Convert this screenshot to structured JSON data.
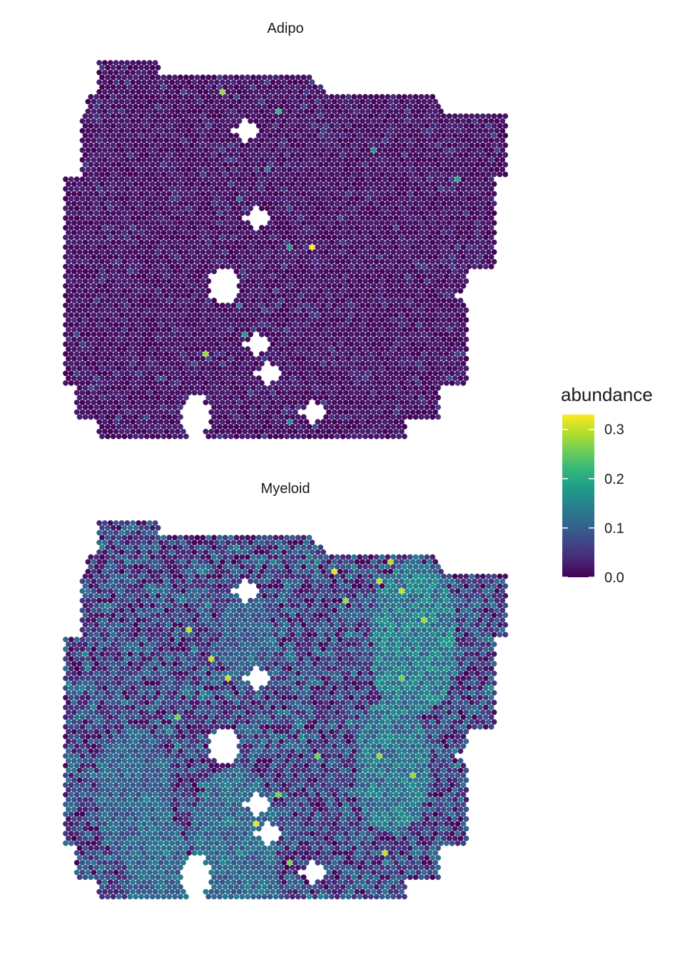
{
  "chart_data": {
    "type": "scatter",
    "description_kind": "spatial spot map (hexagonal grid of tissue spots) colored by abundance",
    "facets": [
      {
        "title": "Adipo",
        "value_range": [
          0.0,
          0.33
        ],
        "typical_value": 0.02,
        "hotspots": [
          {
            "row": 3,
            "col": 28,
            "value": 0.28
          },
          {
            "row": 5,
            "col": 38,
            "value": 0.22
          },
          {
            "row": 9,
            "col": 55,
            "value": 0.18
          },
          {
            "row": 11,
            "col": 36,
            "value": 0.14
          },
          {
            "row": 12,
            "col": 70,
            "value": 0.2
          },
          {
            "row": 14,
            "col": 31,
            "value": 0.12
          },
          {
            "row": 19,
            "col": 44,
            "value": 0.33
          },
          {
            "row": 19,
            "col": 40,
            "value": 0.18
          },
          {
            "row": 25,
            "col": 31,
            "value": 0.14
          },
          {
            "row": 28,
            "col": 32,
            "value": 0.18
          },
          {
            "row": 30,
            "col": 25,
            "value": 0.28
          },
          {
            "row": 37,
            "col": 40,
            "value": 0.16
          },
          {
            "row": 38,
            "col": 74,
            "value": 0.12
          }
        ],
        "hole_centers_rowcol": [
          [
            7,
            32
          ],
          [
            16,
            34
          ],
          [
            23,
            44
          ],
          [
            26,
            48
          ],
          [
            29,
            34
          ],
          [
            32,
            36
          ],
          [
            24,
            72
          ],
          [
            36,
            44
          ]
        ]
      },
      {
        "title": "Myeloid",
        "value_range": [
          0.0,
          0.33
        ],
        "typical_value": 0.08,
        "hotspots": [
          {
            "row": 4,
            "col": 58,
            "value": 0.3
          },
          {
            "row": 5,
            "col": 48,
            "value": 0.32
          },
          {
            "row": 6,
            "col": 56,
            "value": 0.3
          },
          {
            "row": 7,
            "col": 60,
            "value": 0.3
          },
          {
            "row": 8,
            "col": 50,
            "value": 0.28
          },
          {
            "row": 10,
            "col": 64,
            "value": 0.28
          },
          {
            "row": 11,
            "col": 22,
            "value": 0.3
          },
          {
            "row": 14,
            "col": 26,
            "value": 0.3
          },
          {
            "row": 16,
            "col": 29,
            "value": 0.3
          },
          {
            "row": 16,
            "col": 60,
            "value": 0.26
          },
          {
            "row": 20,
            "col": 20,
            "value": 0.26
          },
          {
            "row": 22,
            "col": 28,
            "value": 0.3
          },
          {
            "row": 24,
            "col": 45,
            "value": 0.26
          },
          {
            "row": 24,
            "col": 56,
            "value": 0.28
          },
          {
            "row": 26,
            "col": 62,
            "value": 0.28
          },
          {
            "row": 28,
            "col": 38,
            "value": 0.26
          },
          {
            "row": 31,
            "col": 34,
            "value": 0.32
          },
          {
            "row": 34,
            "col": 57,
            "value": 0.3
          },
          {
            "row": 35,
            "col": 40,
            "value": 0.26
          },
          {
            "row": 39,
            "col": 68,
            "value": 0.32
          }
        ],
        "enriched_regions": [
          {
            "row": 12,
            "col": 62,
            "radius": 8,
            "value": 0.15
          },
          {
            "row": 25,
            "col": 58,
            "radius": 7,
            "value": 0.14
          },
          {
            "row": 33,
            "col": 30,
            "radius": 8,
            "value": 0.12
          },
          {
            "row": 28,
            "col": 12,
            "radius": 7,
            "value": 0.11
          },
          {
            "row": 36,
            "col": 16,
            "radius": 6,
            "value": 0.12
          },
          {
            "row": 12,
            "col": 32,
            "radius": 5,
            "value": 0.1
          }
        ],
        "hole_centers_rowcol": [
          [
            7,
            32
          ],
          [
            16,
            34
          ],
          [
            23,
            44
          ],
          [
            26,
            48
          ],
          [
            29,
            34
          ],
          [
            32,
            36
          ],
          [
            24,
            72
          ],
          [
            36,
            44
          ]
        ]
      }
    ],
    "color_scale": {
      "name": "viridis",
      "limits": [
        0.0,
        0.33
      ],
      "stops": [
        "#440154",
        "#482878",
        "#3e4989",
        "#31688e",
        "#26828e",
        "#1f9e89",
        "#35b779",
        "#6ece58",
        "#b5de2b",
        "#fde725"
      ]
    },
    "legend": {
      "title": "abundance",
      "ticks": [
        {
          "value": 0.0,
          "label": "0.0"
        },
        {
          "value": 0.1,
          "label": "0.1"
        },
        {
          "value": 0.2,
          "label": "0.2"
        },
        {
          "value": 0.3,
          "label": "0.3"
        }
      ],
      "placement": "right"
    },
    "grid": false,
    "axes": "none"
  }
}
